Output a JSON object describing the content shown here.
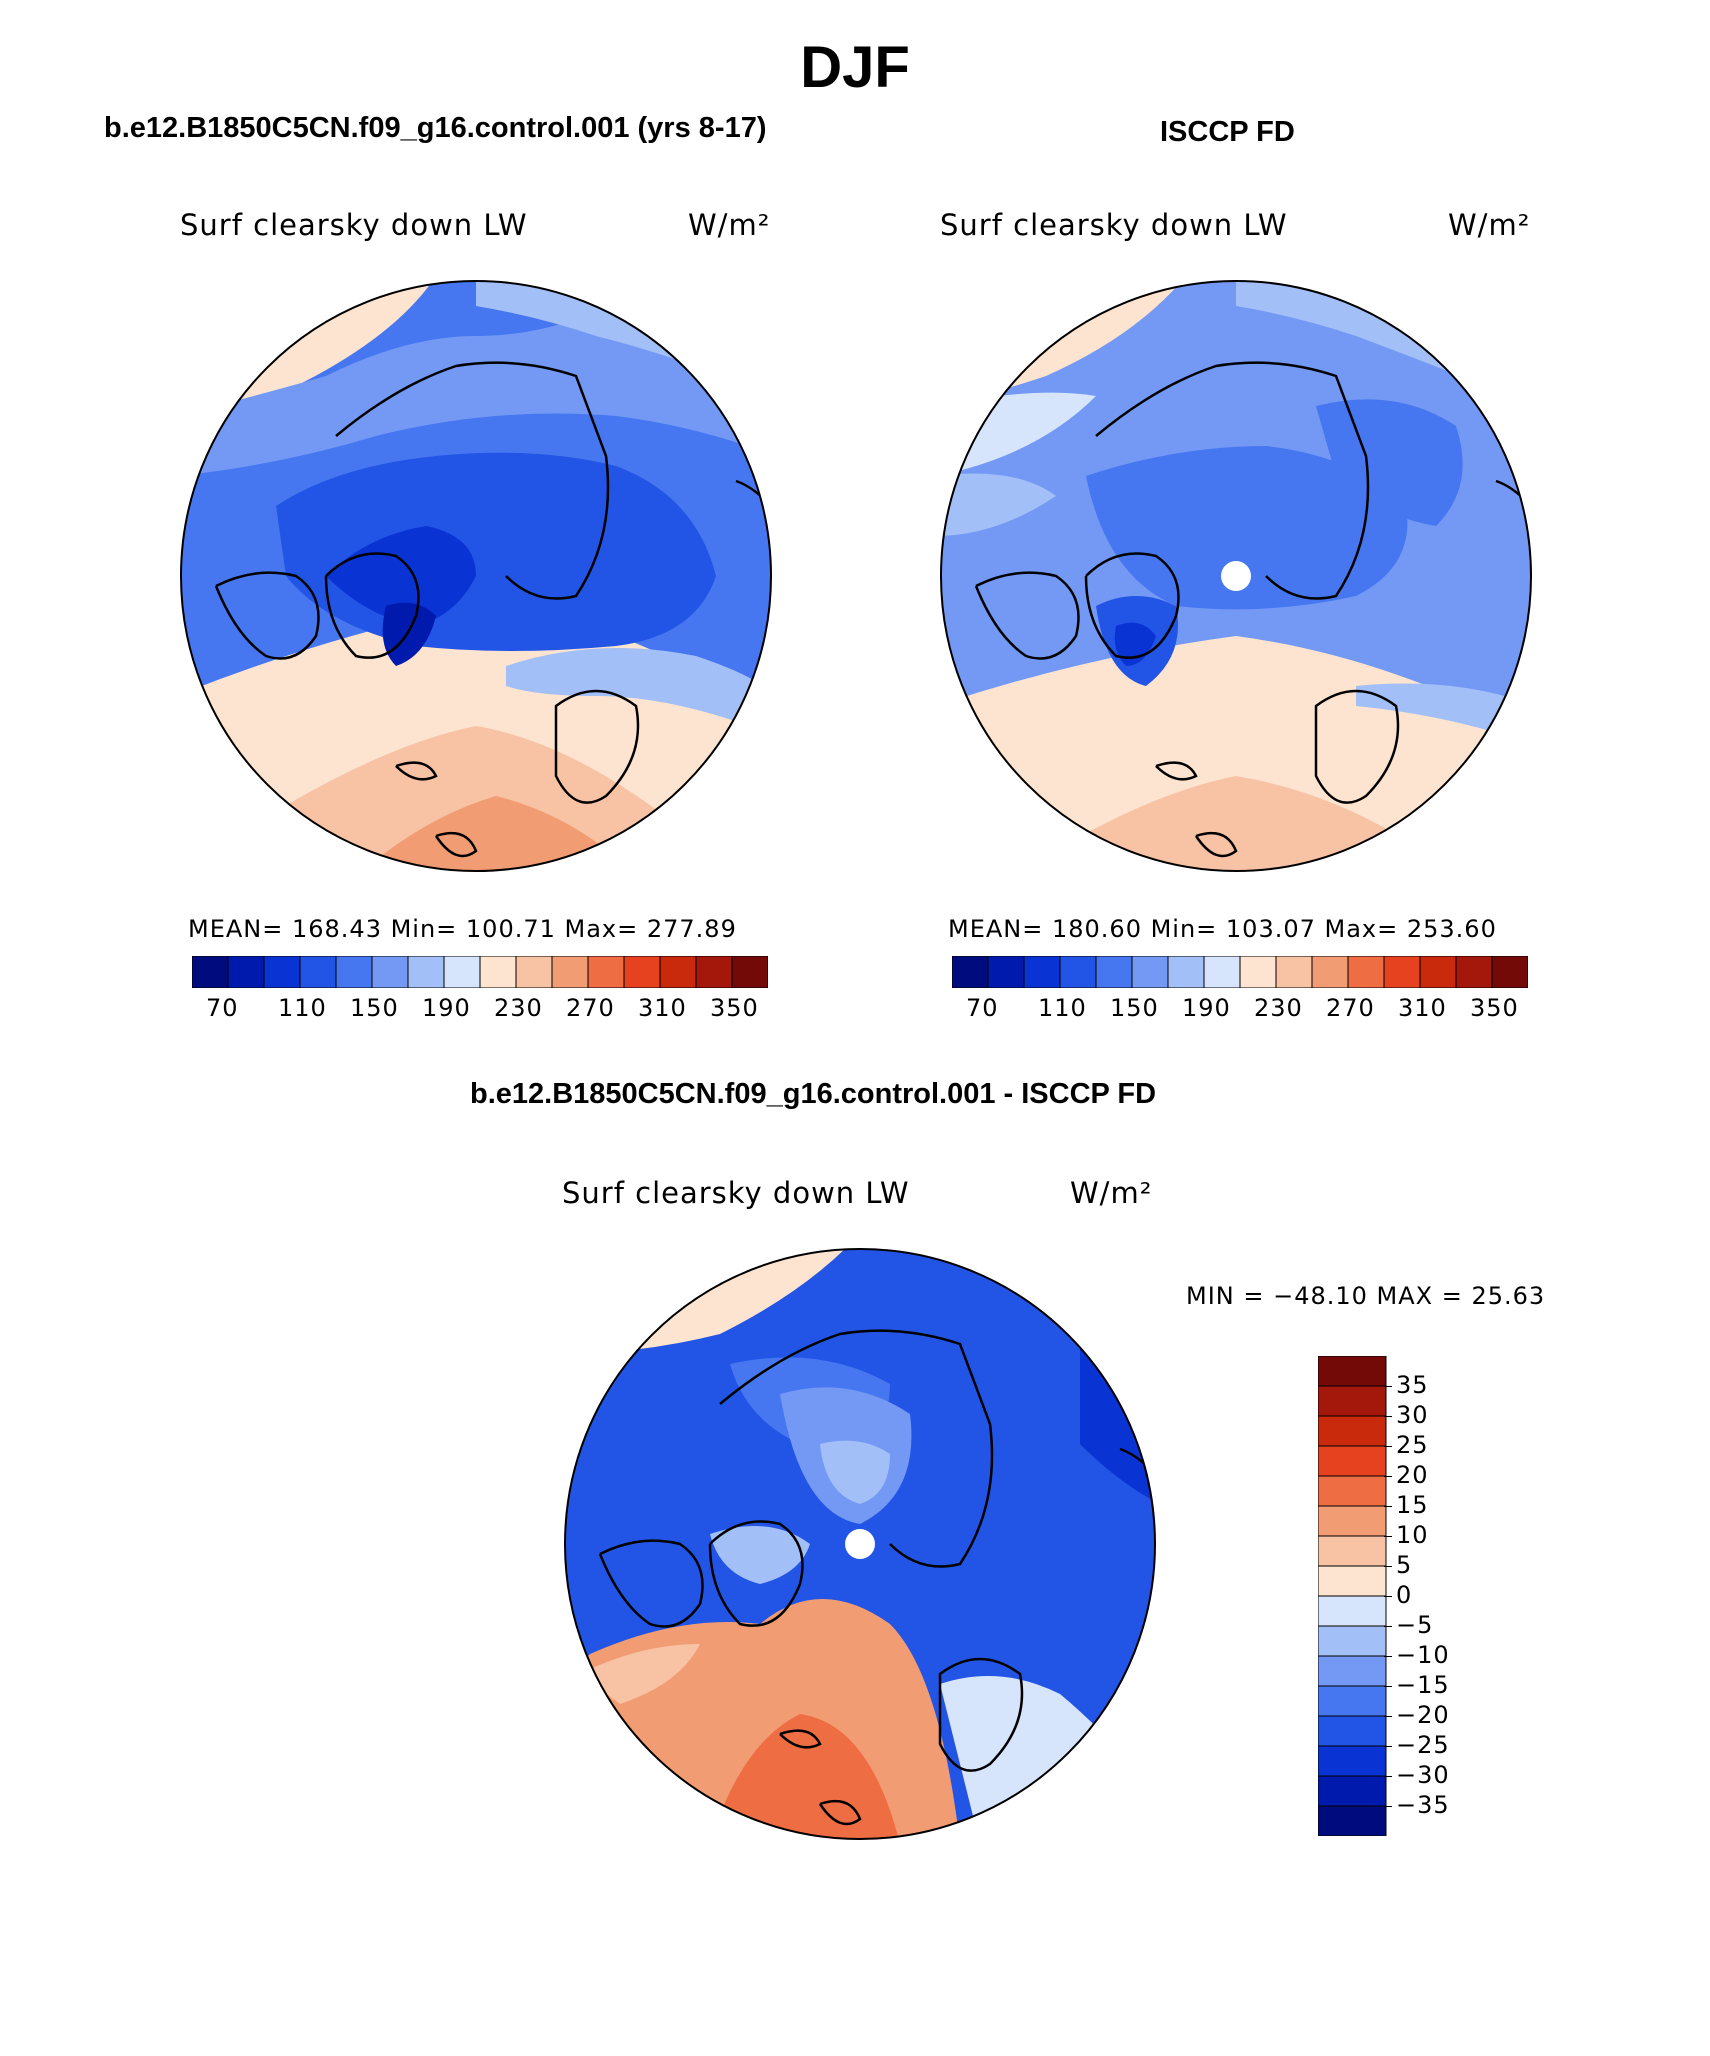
{
  "title": "DJF",
  "panels": {
    "model": {
      "subtitle": "b.e12.B1850C5CN.f09_g16.control.001 (yrs 8-17)",
      "variable": "Surf clearsky down LW",
      "units": "W/m²",
      "stats_text": "MEAN= 168.43   Min= 100.71   Max= 277.89",
      "mean": 168.43,
      "min": 100.71,
      "max": 277.89
    },
    "obs": {
      "subtitle": "ISCCP FD",
      "variable": "Surf clearsky down LW",
      "units": "W/m²",
      "stats_text": "MEAN= 180.60   Min= 103.07   Max= 253.60",
      "mean": 180.6,
      "min": 103.07,
      "max": 253.6
    },
    "diff": {
      "subtitle": "b.e12.B1850C5CN.f09_g16.control.001 - ISCCP FD",
      "variable": "Surf clearsky down LW",
      "units": "W/m²",
      "minmax_text": "MIN = −48.10 MAX =   25.63",
      "min": -48.1,
      "max": 25.63
    }
  },
  "colorbar_main": {
    "colors": [
      "#000c7d",
      "#001aae",
      "#0a33d4",
      "#2255e6",
      "#4677f0",
      "#7399f4",
      "#a3bff7",
      "#d6e5fb",
      "#fde4d0",
      "#f8c2a4",
      "#f29c73",
      "#ee6d43",
      "#e6421f",
      "#c92a0b",
      "#a3180a",
      "#740a08"
    ],
    "tick_labels": [
      "70",
      "110",
      "150",
      "190",
      "230",
      "270",
      "310",
      "350"
    ]
  },
  "colorbar_diff": {
    "colors": [
      "#000c7d",
      "#001aae",
      "#0a33d4",
      "#2255e6",
      "#4677f0",
      "#7399f4",
      "#a3bff7",
      "#d6e5fb",
      "#fde4d0",
      "#f8c2a4",
      "#f29c73",
      "#ee6d43",
      "#e6421f",
      "#c92a0b",
      "#a3180a",
      "#740a08"
    ],
    "tick_labels": [
      "35",
      "30",
      "25",
      "20",
      "15",
      "10",
      "5",
      "0",
      "−5",
      "−10",
      "−15",
      "−20",
      "−25",
      "−30",
      "−35"
    ]
  },
  "map_colors": {
    "coast": "#000000",
    "mask_dot": "#ffffff"
  }
}
